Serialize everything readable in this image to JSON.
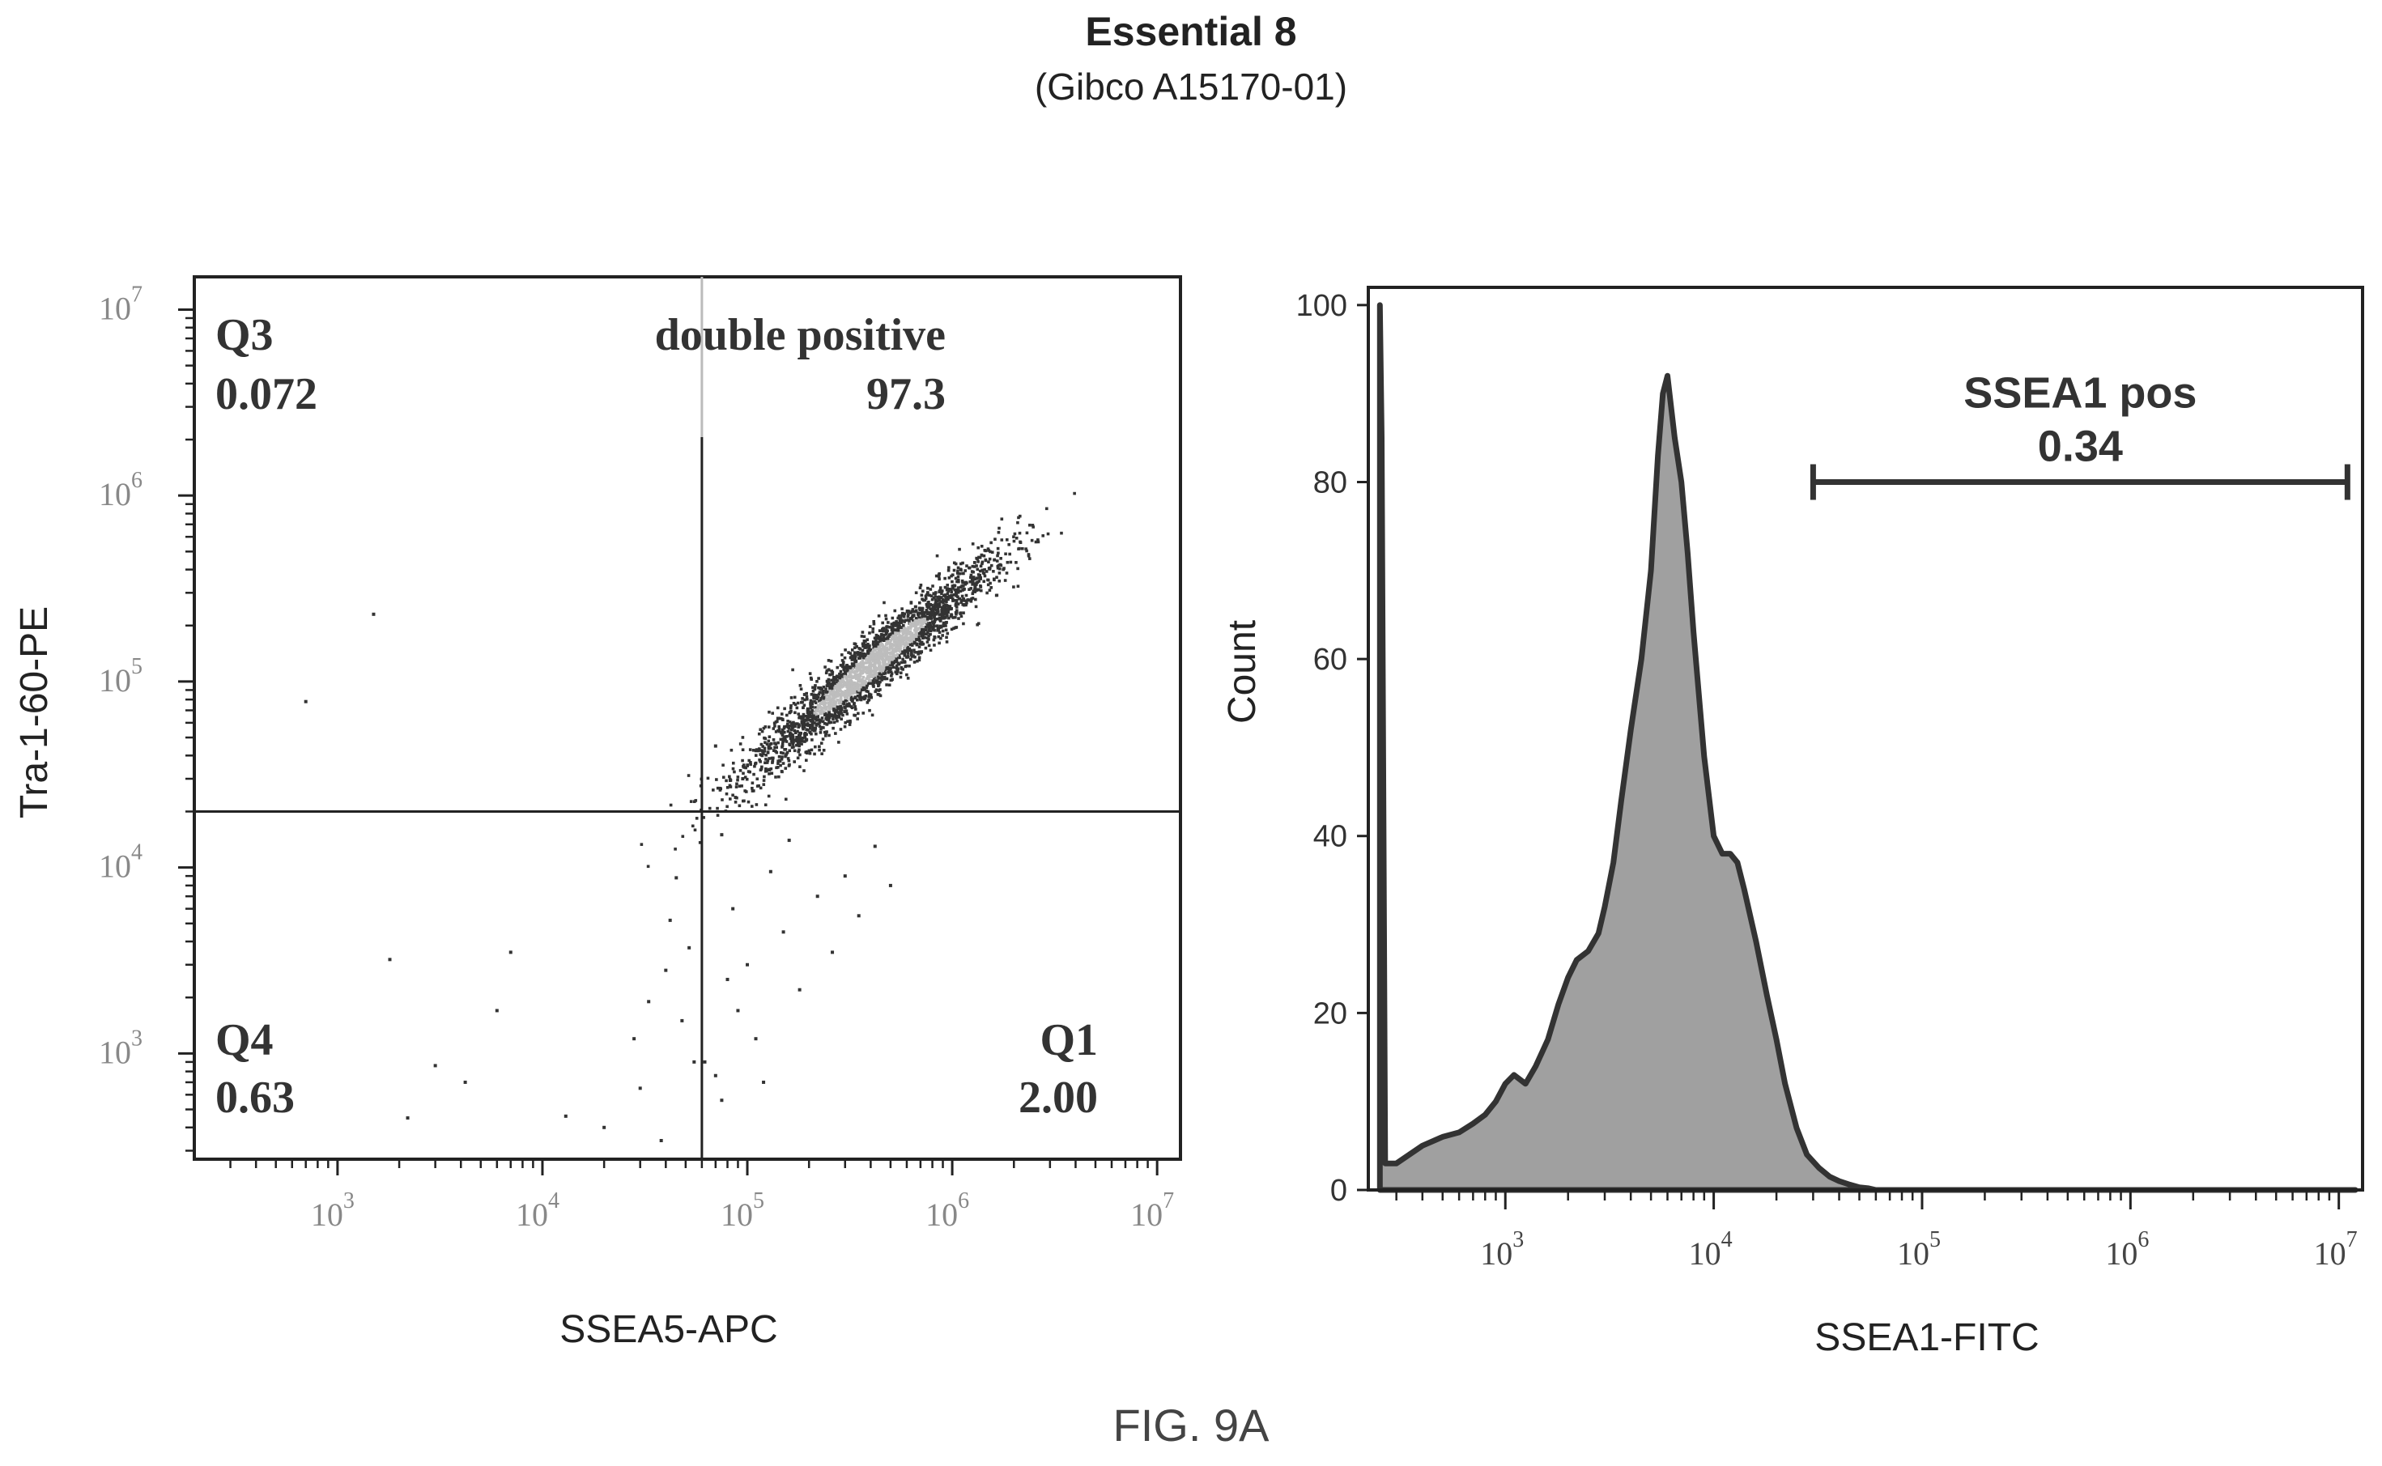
{
  "figure": {
    "title": "Essential 8",
    "subtitle": "(Gibco A15170-01)",
    "caption": "FIG. 9A"
  },
  "chart_data": [
    {
      "type": "scatter",
      "xlabel": "SSEA5-APC",
      "ylabel": "Tra-1-60-PE",
      "x_scale": "log",
      "y_scale": "log",
      "xlim": [
        200,
        13000000
      ],
      "ylim": [
        270,
        15000000
      ],
      "x_ticks": [
        {
          "value": 1000,
          "base": "10",
          "exp": "3"
        },
        {
          "value": 10000,
          "base": "10",
          "exp": "4"
        },
        {
          "value": 100000,
          "base": "10",
          "exp": "5"
        },
        {
          "value": 1000000,
          "base": "10",
          "exp": "6"
        },
        {
          "value": 10000000,
          "base": "10",
          "exp": "7"
        }
      ],
      "y_ticks": [
        {
          "value": 1000,
          "base": "10",
          "exp": "3"
        },
        {
          "value": 10000,
          "base": "10",
          "exp": "4"
        },
        {
          "value": 100000,
          "base": "10",
          "exp": "5"
        },
        {
          "value": 1000000,
          "base": "10",
          "exp": "6"
        },
        {
          "value": 10000000,
          "base": "10",
          "exp": "7"
        }
      ],
      "quadrant_gate": {
        "x": 60000,
        "y": 20000
      },
      "quadrants": [
        {
          "name": "Q3",
          "value": "0.072",
          "position": "top-left"
        },
        {
          "name": "double positive",
          "value": "97.3",
          "position": "top-right"
        },
        {
          "name": "Q4",
          "value": "0.63",
          "position": "bottom-left"
        },
        {
          "name": "Q1",
          "value": "2.00",
          "position": "bottom-right"
        }
      ],
      "population": {
        "center_x": 400000,
        "center_y": 120000,
        "color": "#333333",
        "core_color": "#bdbdbd"
      },
      "outliers": [
        [
          1500,
          230000
        ],
        [
          700,
          78000
        ],
        [
          1800,
          3200
        ],
        [
          3000,
          860
        ],
        [
          4200,
          700
        ],
        [
          2200,
          450
        ],
        [
          6000,
          1700
        ],
        [
          7000,
          3500
        ],
        [
          13000,
          460
        ],
        [
          20000,
          400
        ],
        [
          28000,
          1200
        ],
        [
          30000,
          650
        ],
        [
          33000,
          1900
        ],
        [
          40000,
          2800
        ],
        [
          42000,
          5200
        ],
        [
          45000,
          8800
        ],
        [
          38000,
          340
        ],
        [
          48000,
          1500
        ],
        [
          55000,
          900
        ],
        [
          52000,
          3700
        ],
        [
          62000,
          900
        ],
        [
          70000,
          760
        ],
        [
          75000,
          560
        ],
        [
          80000,
          2500
        ],
        [
          90000,
          1700
        ],
        [
          100000,
          3000
        ],
        [
          110000,
          1200
        ],
        [
          120000,
          700
        ],
        [
          150000,
          4500
        ],
        [
          180000,
          2200
        ],
        [
          220000,
          7000
        ],
        [
          260000,
          3500
        ],
        [
          300000,
          9000
        ],
        [
          350000,
          5500
        ],
        [
          420000,
          13000
        ],
        [
          500000,
          8000
        ],
        [
          85000,
          6000
        ],
        [
          130000,
          9500
        ],
        [
          160000,
          14000
        ],
        [
          95000,
          30000
        ],
        [
          70000,
          45000
        ],
        [
          75000,
          15000
        ]
      ]
    },
    {
      "type": "area",
      "xlabel": "SSEA1-FITC",
      "ylabel": "Count",
      "x_scale": "log",
      "xlim": [
        220,
        13000000
      ],
      "ylim": [
        0,
        102
      ],
      "y_ticks": [
        0,
        20,
        40,
        60,
        80,
        100
      ],
      "x_ticks": [
        {
          "value": 1000,
          "base": "10",
          "exp": "3"
        },
        {
          "value": 10000,
          "base": "10",
          "exp": "4"
        },
        {
          "value": 100000,
          "base": "10",
          "exp": "5"
        },
        {
          "value": 1000000,
          "base": "10",
          "exp": "6"
        },
        {
          "value": 10000000,
          "base": "10",
          "exp": "7"
        }
      ],
      "fill_color": "#a0a0a0",
      "line_color": "#333333",
      "x": [
        250,
        255,
        265,
        300,
        400,
        500,
        600,
        700,
        800,
        900,
        1000,
        1100,
        1250,
        1400,
        1600,
        1800,
        2000,
        2200,
        2500,
        2800,
        3000,
        3300,
        3600,
        4000,
        4500,
        5000,
        5400,
        5700,
        6000,
        6500,
        7000,
        7500,
        8000,
        9000,
        10000,
        11000,
        12000,
        13000,
        14000,
        16000,
        18000,
        20000,
        22000,
        25000,
        28000,
        32000,
        36000,
        40000,
        45000,
        50000,
        55000,
        60000,
        1000000,
        12000000
      ],
      "y": [
        100,
        85,
        3,
        3,
        5,
        6,
        6.5,
        7.5,
        8.5,
        10,
        12,
        13,
        12,
        14,
        17,
        21,
        24,
        26,
        27,
        29,
        32,
        37,
        44,
        52,
        60,
        70,
        83,
        90,
        92,
        85,
        80,
        72,
        63,
        49,
        40,
        38,
        38,
        37,
        34,
        28,
        22,
        17,
        12,
        7,
        4,
        2.5,
        1.5,
        1,
        0.6,
        0.3,
        0.2,
        0,
        0,
        0
      ],
      "gate": {
        "label": "SSEA1 pos",
        "value": "0.34",
        "x_start": 30000,
        "x_end": 11000000,
        "y": 80
      }
    }
  ]
}
